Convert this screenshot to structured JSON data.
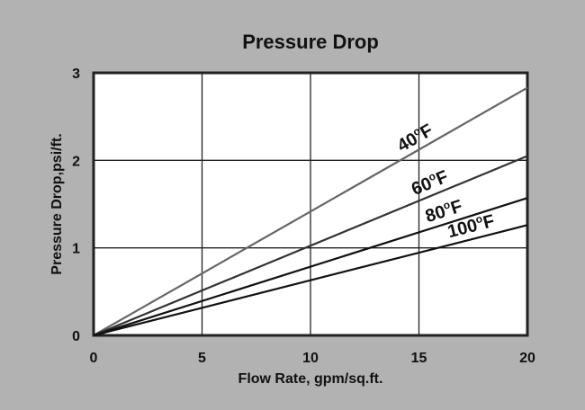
{
  "chart_data": {
    "type": "line",
    "title": "Pressure Drop",
    "xlabel": "Flow Rate, gpm/sq.ft.",
    "ylabel": "Pressure Drop,psi/ft.",
    "xlim": [
      0,
      20
    ],
    "ylim": [
      0,
      3
    ],
    "xticks": [
      "0",
      "5",
      "10",
      "15",
      "20"
    ],
    "yticks": [
      "0",
      "1",
      "2",
      "3"
    ],
    "grid": true,
    "series": [
      {
        "name": "40",
        "unit": "F",
        "sup": "o",
        "x": [
          0,
          20
        ],
        "y": [
          0,
          2.83
        ],
        "color": "#666666"
      },
      {
        "name": "60",
        "unit": "F",
        "sup": "o",
        "x": [
          0,
          20
        ],
        "y": [
          0,
          2.05
        ],
        "color": "#333333"
      },
      {
        "name": "80",
        "unit": "F",
        "sup": "o",
        "x": [
          0,
          20
        ],
        "y": [
          0,
          1.57
        ],
        "color": "#111111"
      },
      {
        "name": "100",
        "unit": "F",
        "sup": "o",
        "x": [
          0,
          20
        ],
        "y": [
          0,
          1.26
        ],
        "color": "#111111"
      }
    ],
    "labels_at_x": [
      14.2,
      14.8,
      15.4,
      16.4
    ],
    "background": "#b2b2b2"
  }
}
